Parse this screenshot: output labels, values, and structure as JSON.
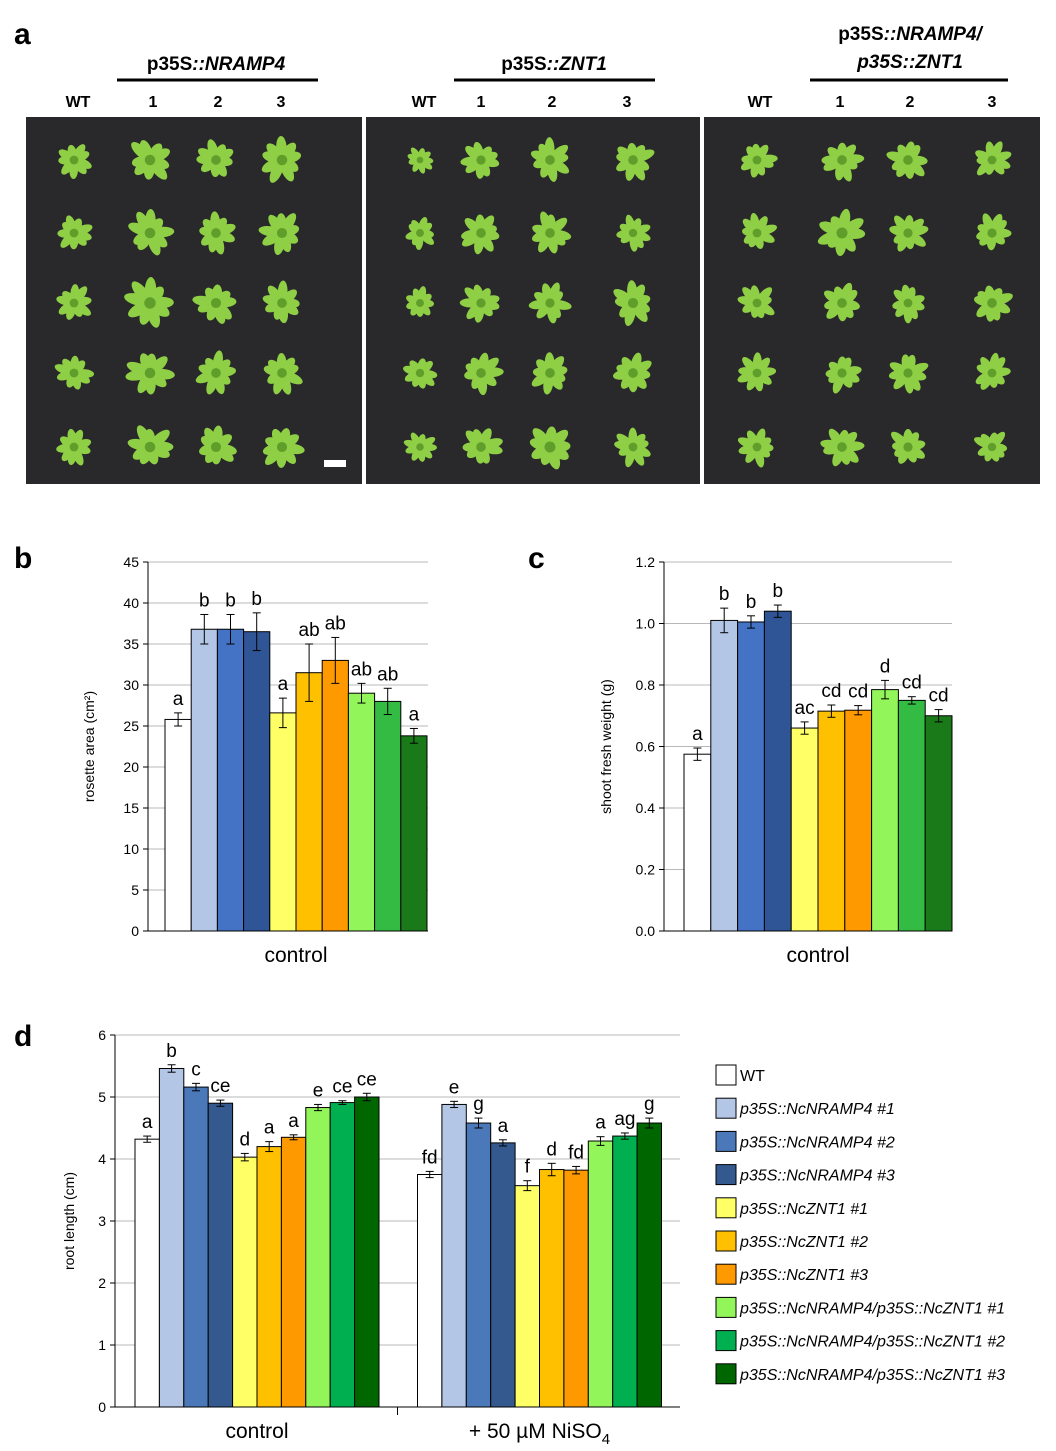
{
  "panel_a": {
    "letter": "a",
    "panels": [
      {
        "title_prefix": "p35S",
        "title_sep": "::",
        "title_gene": "NRAMP4",
        "title_line2": "",
        "columns": [
          "WT",
          "1",
          "2",
          "3"
        ]
      },
      {
        "title_prefix": "p35S",
        "title_sep": "::",
        "title_gene": "ZNT1",
        "title_line2": "",
        "columns": [
          "WT",
          "1",
          "2",
          "3"
        ]
      },
      {
        "title_prefix": "p35S",
        "title_sep": "::",
        "title_gene": "NRAMP4/",
        "title_line2": "p35S::ZNT1",
        "columns": [
          "WT",
          "1",
          "2",
          "3"
        ]
      }
    ],
    "photo_background": "#29282b",
    "leaf_color": "#8fcf45",
    "leaf_dark": "#5f9e2a",
    "scale_bar_color": "#ffffff"
  },
  "chart_data": [
    {
      "panel": "b",
      "type": "bar",
      "ylabel": "rosette area (cm²)",
      "xlabel": "",
      "ylim": [
        0,
        45
      ],
      "yticks": [
        "0",
        "5",
        "10",
        "15",
        "20",
        "25",
        "30",
        "35",
        "40",
        "45"
      ],
      "grid": true,
      "groups": [
        {
          "label": "control",
          "values": [
            25.8,
            36.8,
            36.8,
            36.5,
            26.6,
            31.5,
            33.0,
            29.0,
            28.0,
            23.8
          ],
          "errors": [
            0.8,
            1.8,
            1.8,
            2.3,
            1.8,
            3.5,
            2.8,
            1.2,
            1.6,
            0.9
          ],
          "letters": [
            "a",
            "b",
            "b",
            "b",
            "a",
            "ab",
            "ab",
            "ab",
            "ab",
            "a"
          ]
        }
      ]
    },
    {
      "panel": "c",
      "type": "bar",
      "ylabel": "shoot fresh weight (g)",
      "xlabel": "",
      "ylim": [
        0,
        1.2
      ],
      "yticks": [
        "0.0",
        "0.2",
        "0.4",
        "0.6",
        "0.8",
        "1.0",
        "1.2"
      ],
      "grid": true,
      "groups": [
        {
          "label": "control",
          "values": [
            0.575,
            1.01,
            1.005,
            1.04,
            0.66,
            0.715,
            0.718,
            0.785,
            0.75,
            0.7
          ],
          "errors": [
            0.02,
            0.04,
            0.02,
            0.02,
            0.02,
            0.02,
            0.015,
            0.03,
            0.012,
            0.02
          ],
          "letters": [
            "a",
            "b",
            "b",
            "b",
            "ac",
            "cd",
            "cd",
            "d",
            "cd",
            "cd"
          ]
        }
      ]
    },
    {
      "panel": "d",
      "type": "bar",
      "ylabel": "root length (cm)",
      "xlabel": "",
      "ylim": [
        0,
        6
      ],
      "yticks": [
        "0",
        "1",
        "2",
        "3",
        "4",
        "5",
        "6"
      ],
      "grid": true,
      "groups": [
        {
          "label": "control",
          "values": [
            4.32,
            5.46,
            5.16,
            4.9,
            4.03,
            4.2,
            4.35,
            4.83,
            4.91,
            5.0
          ],
          "errors": [
            0.05,
            0.06,
            0.06,
            0.05,
            0.06,
            0.08,
            0.04,
            0.05,
            0.03,
            0.06
          ],
          "letters": [
            "a",
            "b",
            "c",
            "ce",
            "d",
            "a",
            "a",
            "e",
            "ce",
            "ce"
          ]
        },
        {
          "label": "+ 50 µM NiSO",
          "label_sub": "4",
          "values": [
            3.75,
            4.88,
            4.58,
            4.26,
            3.57,
            3.83,
            3.82,
            4.29,
            4.37,
            4.58
          ],
          "errors": [
            0.05,
            0.05,
            0.08,
            0.05,
            0.08,
            0.1,
            0.06,
            0.07,
            0.05,
            0.08
          ],
          "letters": [
            "fd",
            "e",
            "g",
            "a",
            "f",
            "d",
            "fd",
            "a",
            "ag",
            "g"
          ]
        }
      ]
    }
  ],
  "legend": {
    "placement": "right of panel d",
    "entries": [
      {
        "label": "WT",
        "italic": false
      },
      {
        "label": "p35S::NcNRAMP4 #1",
        "italic": true
      },
      {
        "label": "p35S::NcNRAMP4 #2",
        "italic": true
      },
      {
        "label": "p35S::NcNRAMP4 #3",
        "italic": true
      },
      {
        "label": "p35S::NcZNT1 #1",
        "italic": true
      },
      {
        "label": "p35S::NcZNT1 #2",
        "italic": true
      },
      {
        "label": "p35S::NcZNT1 #3",
        "italic": true
      },
      {
        "label": "p35S::NcNRAMP4/p35S::NcZNT1 #1",
        "italic": true
      },
      {
        "label": "p35S::NcNRAMP4/p35S::NcZNT1 #2",
        "italic": true
      },
      {
        "label": "p35S::NcNRAMP4/p35S::NcZNT1 #3",
        "italic": true
      }
    ]
  },
  "colors": {
    "panel_bc": [
      "#ffffff",
      "#b4c6e6",
      "#4472c4",
      "#2f5597",
      "#ffff66",
      "#ffc000",
      "#ff9900",
      "#92f55a",
      "#33bb44",
      "#1a7a1a"
    ],
    "panel_d": [
      "#ffffff",
      "#b4c6e6",
      "#4a78b8",
      "#34598f",
      "#ffff66",
      "#ffc000",
      "#ff9900",
      "#92f55a",
      "#00b050",
      "#006600"
    ],
    "grid": "#b8b8b8",
    "axis": "#000000"
  }
}
